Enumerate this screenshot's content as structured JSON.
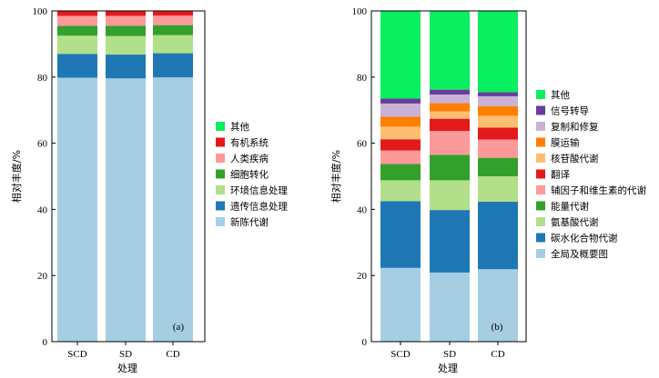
{
  "chart_data": [
    {
      "type": "bar",
      "stacked": true,
      "panel_label": "(a)",
      "categories": [
        "SCD",
        "SD",
        "CD"
      ],
      "xlabel": "处理",
      "ylabel": "相对丰度/%",
      "ylim": [
        0,
        100
      ],
      "yticks": [
        0,
        20,
        40,
        60,
        80,
        100
      ],
      "legend_position": "right",
      "series": [
        {
          "name": "新陈代谢",
          "color": "#a6cee3",
          "values": [
            79.8,
            79.6,
            79.9
          ]
        },
        {
          "name": "遗传信息处理",
          "color": "#1f78b4",
          "values": [
            7.2,
            7.2,
            7.3
          ]
        },
        {
          "name": "环境信息处理",
          "color": "#b2df8a",
          "values": [
            5.5,
            5.6,
            5.5
          ]
        },
        {
          "name": "细胞转化",
          "color": "#33a02c",
          "values": [
            3.0,
            3.1,
            3.0
          ]
        },
        {
          "name": "人类疾病",
          "color": "#fb9a99",
          "values": [
            3.0,
            3.0,
            2.9
          ]
        },
        {
          "name": "有机系统",
          "color": "#e31a1c",
          "values": [
            1.5,
            1.5,
            1.4
          ]
        },
        {
          "name": "其他",
          "color": "#0aef5f",
          "values": [
            0.0,
            0.0,
            0.0
          ]
        }
      ]
    },
    {
      "type": "bar",
      "stacked": true,
      "panel_label": "(b)",
      "categories": [
        "SCD",
        "SD",
        "CD"
      ],
      "xlabel": "处理",
      "ylabel": "相对丰度/%",
      "ylim": [
        0,
        100
      ],
      "yticks": [
        0,
        20,
        40,
        60,
        80,
        100
      ],
      "legend_position": "right",
      "series": [
        {
          "name": "全局及概要图",
          "color": "#a6cee3",
          "values": [
            22.3,
            20.9,
            21.9
          ]
        },
        {
          "name": "碳水化合物代谢",
          "color": "#1f78b4",
          "values": [
            20.2,
            18.9,
            20.4
          ]
        },
        {
          "name": "氨基酸代谢",
          "color": "#b2df8a",
          "values": [
            6.3,
            9.0,
            7.7
          ]
        },
        {
          "name": "能量代谢",
          "color": "#33a02c",
          "values": [
            4.9,
            7.7,
            5.6
          ]
        },
        {
          "name": "辅因子和维生素的代谢",
          "color": "#fb9a99",
          "values": [
            4.1,
            7.2,
            5.5
          ]
        },
        {
          "name": "翻译",
          "color": "#e31a1c",
          "values": [
            3.4,
            3.7,
            3.6
          ]
        },
        {
          "name": "核苷酸代谢",
          "color": "#fdbf6f",
          "values": [
            3.8,
            2.2,
            3.6
          ]
        },
        {
          "name": "膜运输",
          "color": "#ff7f00",
          "values": [
            3.0,
            2.5,
            2.9
          ]
        },
        {
          "name": "复制和修复",
          "color": "#cab2d6",
          "values": [
            4.0,
            2.6,
            3.0
          ]
        },
        {
          "name": "信号转导",
          "color": "#6a3d9a",
          "values": [
            1.5,
            1.5,
            1.2
          ]
        },
        {
          "name": "其他",
          "color": "#0aef5f",
          "values": [
            26.5,
            23.8,
            24.6
          ]
        }
      ]
    }
  ]
}
